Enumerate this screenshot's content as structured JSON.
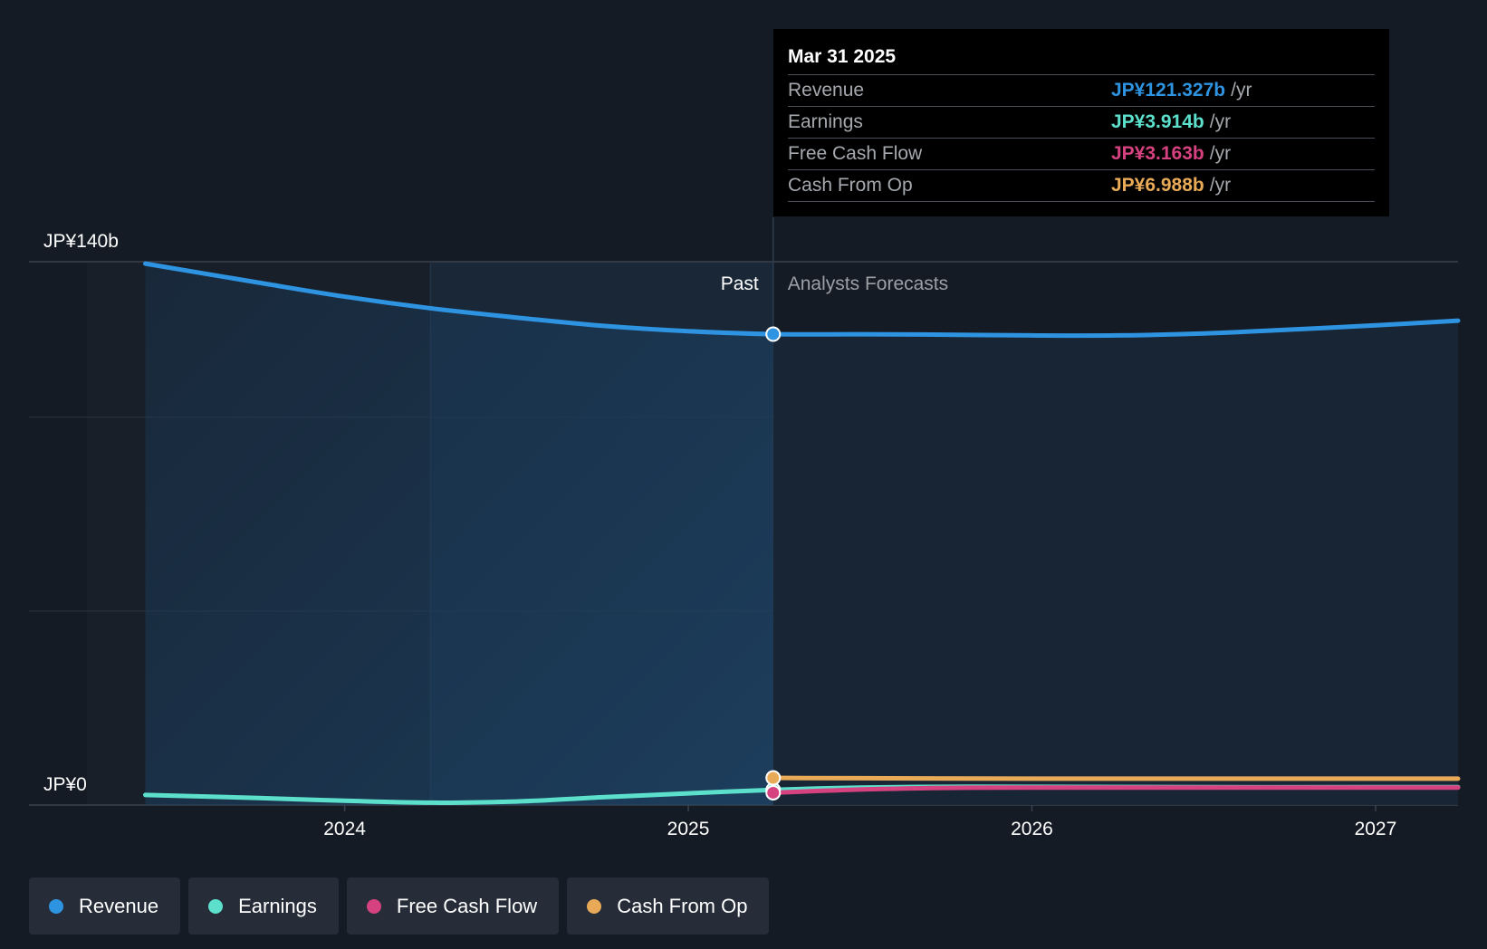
{
  "colors": {
    "revenue": "#2e93e0",
    "earnings": "#5ce0cc",
    "free_cash_flow": "#d6427f",
    "cash_from_op": "#e8aa57"
  },
  "tooltip": {
    "date": "Mar 31 2025",
    "rows": [
      {
        "label": "Revenue",
        "value": "JP¥121.327b",
        "unit": "/yr"
      },
      {
        "label": "Earnings",
        "value": "JP¥3.914b",
        "unit": "/yr"
      },
      {
        "label": "Free Cash Flow",
        "value": "JP¥3.163b",
        "unit": "/yr"
      },
      {
        "label": "Cash From Op",
        "value": "JP¥6.988b",
        "unit": "/yr"
      }
    ]
  },
  "legend": [
    {
      "label": "Revenue"
    },
    {
      "label": "Earnings"
    },
    {
      "label": "Free Cash Flow"
    },
    {
      "label": "Cash From Op"
    }
  ],
  "chart_data": {
    "type": "line",
    "y_tick_labels": [
      "JP¥140b",
      "JP¥0"
    ],
    "x_tick_labels": [
      "2024",
      "2025",
      "2026",
      "2027"
    ],
    "ylim": [
      0,
      140
    ],
    "xlim": [
      2023.25,
      2027.24
    ],
    "past_label": "Past",
    "forecast_label": "Analysts Forecasts",
    "divider_x": 2025.247,
    "marker_x": 2025.247,
    "highlight_start": 2024.25,
    "series": [
      {
        "name": "Revenue",
        "key": "revenue",
        "area": true,
        "x": [
          2023.42,
          2023.75,
          2024.0,
          2024.25,
          2024.5,
          2024.75,
          2025.0,
          2025.247,
          2025.5,
          2025.75,
          2026.0,
          2026.25,
          2026.5,
          2026.75,
          2027.0,
          2027.24
        ],
        "y": [
          139.5,
          134.6,
          131.0,
          128.0,
          125.6,
          123.5,
          122.1,
          121.327,
          121.3,
          121.2,
          121.0,
          121.0,
          121.5,
          122.5,
          123.6,
          124.8
        ]
      },
      {
        "name": "Earnings",
        "key": "earnings",
        "x": [
          2023.42,
          2023.75,
          2024.0,
          2024.25,
          2024.5,
          2024.75,
          2025.0,
          2025.247,
          2025.5,
          2025.75,
          2026.0,
          2026.5,
          2027.0,
          2027.24
        ],
        "y": [
          2.6,
          1.8,
          1.1,
          0.6,
          0.9,
          2.0,
          3.0,
          3.914,
          4.5,
          4.7,
          4.7,
          4.6,
          4.6,
          4.6
        ]
      },
      {
        "name": "Free Cash Flow",
        "key": "free_cash_flow",
        "x": [
          2025.247,
          2025.5,
          2025.75,
          2026.0,
          2026.5,
          2027.0,
          2027.24
        ],
        "y": [
          3.163,
          4.0,
          4.4,
          4.5,
          4.5,
          4.5,
          4.5
        ]
      },
      {
        "name": "Cash From Op",
        "key": "cash_from_op",
        "x": [
          2025.247,
          2025.5,
          2026.0,
          2026.5,
          2027.0,
          2027.24
        ],
        "y": [
          6.988,
          6.9,
          6.8,
          6.8,
          6.8,
          6.8
        ]
      }
    ]
  }
}
